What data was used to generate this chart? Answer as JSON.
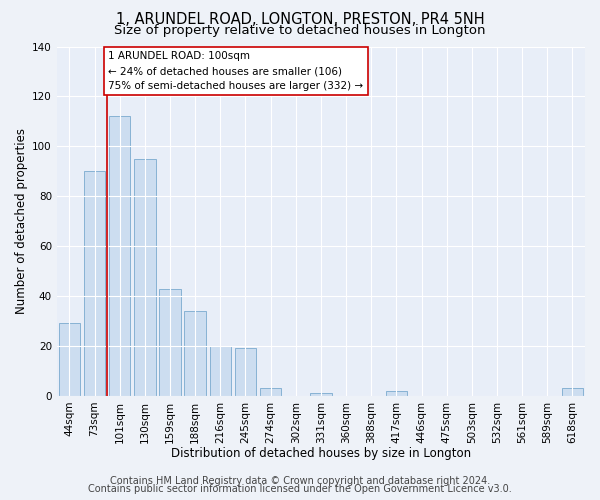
{
  "title": "1, ARUNDEL ROAD, LONGTON, PRESTON, PR4 5NH",
  "subtitle": "Size of property relative to detached houses in Longton",
  "xlabel": "Distribution of detached houses by size in Longton",
  "ylabel": "Number of detached properties",
  "bar_labels": [
    "44sqm",
    "73sqm",
    "101sqm",
    "130sqm",
    "159sqm",
    "188sqm",
    "216sqm",
    "245sqm",
    "274sqm",
    "302sqm",
    "331sqm",
    "360sqm",
    "388sqm",
    "417sqm",
    "446sqm",
    "475sqm",
    "503sqm",
    "532sqm",
    "561sqm",
    "589sqm",
    "618sqm"
  ],
  "bar_values": [
    29,
    90,
    112,
    95,
    43,
    34,
    20,
    19,
    3,
    0,
    1,
    0,
    0,
    2,
    0,
    0,
    0,
    0,
    0,
    0,
    3
  ],
  "bar_color": "#ccddf0",
  "bar_edge_color": "#7aaacf",
  "ylim": [
    0,
    140
  ],
  "yticks": [
    0,
    20,
    40,
    60,
    80,
    100,
    120,
    140
  ],
  "annotation_box_text": "1 ARUNDEL ROAD: 100sqm\n← 24% of detached houses are smaller (106)\n75% of semi-detached houses are larger (332) →",
  "annotation_box_color": "#ffffff",
  "annotation_box_edge_color": "#cc0000",
  "vline_color": "#cc0000",
  "footer_line1": "Contains HM Land Registry data © Crown copyright and database right 2024.",
  "footer_line2": "Contains public sector information licensed under the Open Government Licence v3.0.",
  "bg_color": "#eef2f8",
  "plot_bg_color": "#e8eef8",
  "title_fontsize": 10.5,
  "subtitle_fontsize": 9.5,
  "axis_label_fontsize": 8.5,
  "tick_fontsize": 7.5,
  "footer_fontsize": 7.0
}
